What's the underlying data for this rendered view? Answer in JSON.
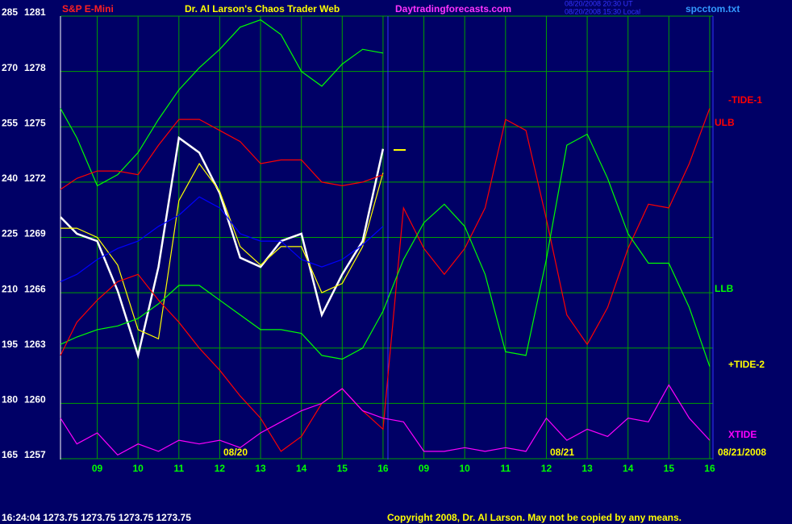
{
  "header": {
    "symbol": "S&P E-Mini",
    "title": "Dr. Al Larson's Chaos Trader Web",
    "site": "Daytradingforecasts.com",
    "time_ut": "08/20/2008 20:30 UT",
    "time_local": "08/20/2008 15:30 Local",
    "file": "spcctom.txt"
  },
  "chart_data": {
    "type": "line",
    "x": [
      0.1,
      0.5,
      1,
      1.5,
      2,
      2.5,
      3,
      3.5,
      4,
      4.5,
      5,
      5.5,
      6,
      6.5,
      7,
      7.5,
      8,
      8.5,
      9,
      9.5,
      10,
      10.5,
      11,
      11.5,
      12,
      12.5,
      13,
      13.5,
      14,
      14.5,
      15,
      15.5,
      16
    ],
    "xlim": [
      0.1,
      16.08
    ],
    "xticks": [
      {
        "value": 1,
        "label": "09"
      },
      {
        "value": 2,
        "label": "10"
      },
      {
        "value": 3,
        "label": "11"
      },
      {
        "value": 4,
        "label": "12"
      },
      {
        "value": 5,
        "label": "13"
      },
      {
        "value": 6,
        "label": "14"
      },
      {
        "value": 7,
        "label": "15"
      },
      {
        "value": 8,
        "label": "16"
      },
      {
        "value": 9,
        "label": "09"
      },
      {
        "value": 10,
        "label": "10"
      },
      {
        "value": 11,
        "label": "11"
      },
      {
        "value": 12,
        "label": "12"
      },
      {
        "value": 13,
        "label": "13"
      },
      {
        "value": 14,
        "label": "14"
      },
      {
        "value": 15,
        "label": "15"
      },
      {
        "value": 16,
        "label": "16"
      }
    ],
    "ylim": [
      165,
      285
    ],
    "yticks": [
      165,
      180,
      195,
      210,
      225,
      240,
      255,
      270,
      285
    ],
    "y2lim": [
      1257,
      1281
    ],
    "y2ticks": [
      1257,
      1260,
      1263,
      1266,
      1269,
      1272,
      1275,
      1278,
      1281
    ],
    "grid": true,
    "day_labels": [
      "08/20",
      "08/21"
    ],
    "end_date": "08/21/2008",
    "series": [
      {
        "color": "#ffffff",
        "axis": "y2",
        "values": [
          1270.1,
          1269.2,
          1268.8,
          1266.1,
          1262.6,
          1267.4,
          1274.4,
          1273.6,
          1271.4,
          1267.9,
          1267.4,
          1268.8,
          1269.2,
          1264.8,
          1267.0,
          1268.8,
          1273.8,
          null,
          null,
          null,
          null,
          null,
          null,
          null,
          null,
          null,
          null,
          null,
          null,
          null,
          null,
          null,
          null
        ]
      },
      {
        "color": "#ffff00",
        "axis": "y2",
        "values": [
          1269.5,
          1269.5,
          1269,
          1267.5,
          1264,
          1263.5,
          1271,
          1273,
          1271.5,
          1268.5,
          1267.5,
          1268.5,
          1268.5,
          1266,
          1266.5,
          1268.5,
          1272.5,
          null,
          null,
          null,
          null,
          null,
          null,
          null,
          null,
          null,
          null,
          null,
          null,
          null,
          null,
          null,
          null
        ]
      },
      {
        "color": "#0000ff",
        "values": [
          213,
          215,
          219,
          222,
          224,
          228,
          231,
          236,
          233,
          226,
          224,
          224,
          219,
          217,
          219,
          223,
          228,
          null,
          null,
          null,
          null,
          null,
          null,
          null,
          null,
          null,
          null,
          null,
          null,
          null,
          null,
          null,
          null
        ]
      },
      {
        "color": "#00ff00",
        "values": [
          260,
          252,
          239,
          242,
          248,
          257,
          265,
          271,
          276,
          282,
          284,
          280,
          270,
          266,
          272,
          276,
          275,
          null,
          null,
          null,
          null,
          null,
          null,
          null,
          null,
          null,
          null,
          null,
          null,
          null,
          null,
          null,
          null
        ]
      },
      {
        "name": "ULB",
        "color": "#ff0000",
        "values": [
          238,
          241,
          243,
          243,
          242,
          250,
          257,
          257,
          254,
          251,
          245,
          246,
          246,
          240,
          239,
          240,
          242,
          null,
          null,
          null,
          null,
          null,
          null,
          null,
          null,
          null,
          null,
          null,
          null,
          null,
          null,
          null,
          null
        ]
      },
      {
        "name": "LLB",
        "color": "#00ff00",
        "values": [
          196,
          198,
          200,
          201,
          203,
          207,
          212,
          212,
          208,
          204,
          200,
          200,
          199,
          193,
          192,
          195,
          205,
          null,
          null,
          null,
          null,
          null,
          null,
          null,
          null,
          null,
          null,
          null,
          null,
          null,
          null,
          null,
          null
        ]
      },
      {
        "name": "-TIDE-1",
        "color": "#ff0000",
        "values": [
          193,
          202,
          208,
          213,
          215,
          208,
          202,
          195,
          189,
          182,
          176,
          167,
          171,
          180,
          184,
          178,
          173,
          233,
          222,
          215,
          222,
          233,
          257,
          254,
          230,
          204,
          196,
          206,
          222,
          234,
          233,
          245,
          260
        ]
      },
      {
        "name": "+TIDE-2",
        "color": "#00ff00",
        "label_color": "#ffff00",
        "values": [
          null,
          null,
          null,
          null,
          null,
          null,
          null,
          null,
          null,
          null,
          null,
          null,
          null,
          null,
          null,
          null,
          205,
          219,
          229,
          234,
          228,
          215,
          194,
          193,
          219,
          250,
          253,
          241,
          226,
          218,
          218,
          206,
          190
        ]
      },
      {
        "name": "XTIDE",
        "color": "#ff00ff",
        "values": [
          176,
          169,
          172,
          166,
          169,
          167,
          170,
          169,
          170,
          168,
          172,
          175,
          178,
          180,
          184,
          178,
          176,
          175,
          167,
          167,
          168,
          167,
          168,
          167,
          176,
          170,
          173,
          171,
          176,
          175,
          185,
          176,
          170
        ]
      }
    ]
  },
  "footer": {
    "quote": "16:24:04  1273.75 1273.75 1273.75 1273.75",
    "copyright": "Copyright 2008, Dr. Al Larson. May not be copied by any means."
  }
}
